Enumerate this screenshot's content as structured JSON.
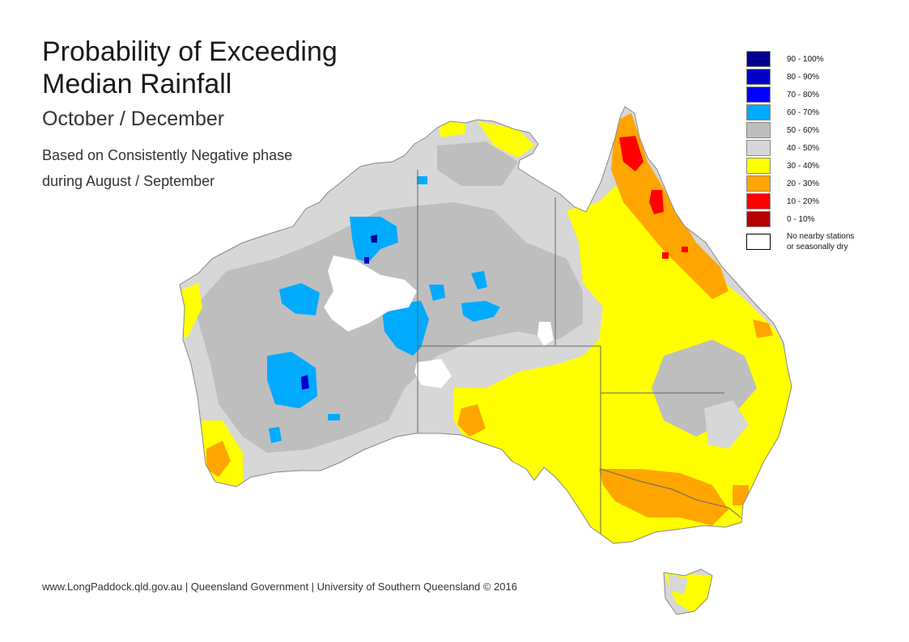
{
  "title": {
    "line1": "Probability of Exceeding",
    "line2": "Median Rainfall"
  },
  "subtitle": "October / December",
  "note": {
    "line1": "Based on Consistently Negative phase",
    "line2": "during August / September"
  },
  "footer": "www.LongPaddock.qld.gov.au | Queensland Government | University of Southern Queensland © 2016",
  "legend": [
    {
      "label": "90 - 100%",
      "color": "#00008b"
    },
    {
      "label": "80 - 90%",
      "color": "#0000c8"
    },
    {
      "label": "70 - 80%",
      "color": "#0000ff"
    },
    {
      "label": "60 - 70%",
      "color": "#00aaff"
    },
    {
      "label": "50 - 60%",
      "color": "#bebebe"
    },
    {
      "label": "40 - 50%",
      "color": "#d7d7d7"
    },
    {
      "label": "30 - 40%",
      "color": "#ffff00"
    },
    {
      "label": "20 - 30%",
      "color": "#ffa500"
    },
    {
      "label": "10 - 20%",
      "color": "#ff0000"
    },
    {
      "label": "0 - 10%",
      "color": "#b40000"
    }
  ],
  "legend_nodata": {
    "line1": "No nearby stations",
    "line2": "or seasonally dry",
    "color": "#ffffff"
  }
}
